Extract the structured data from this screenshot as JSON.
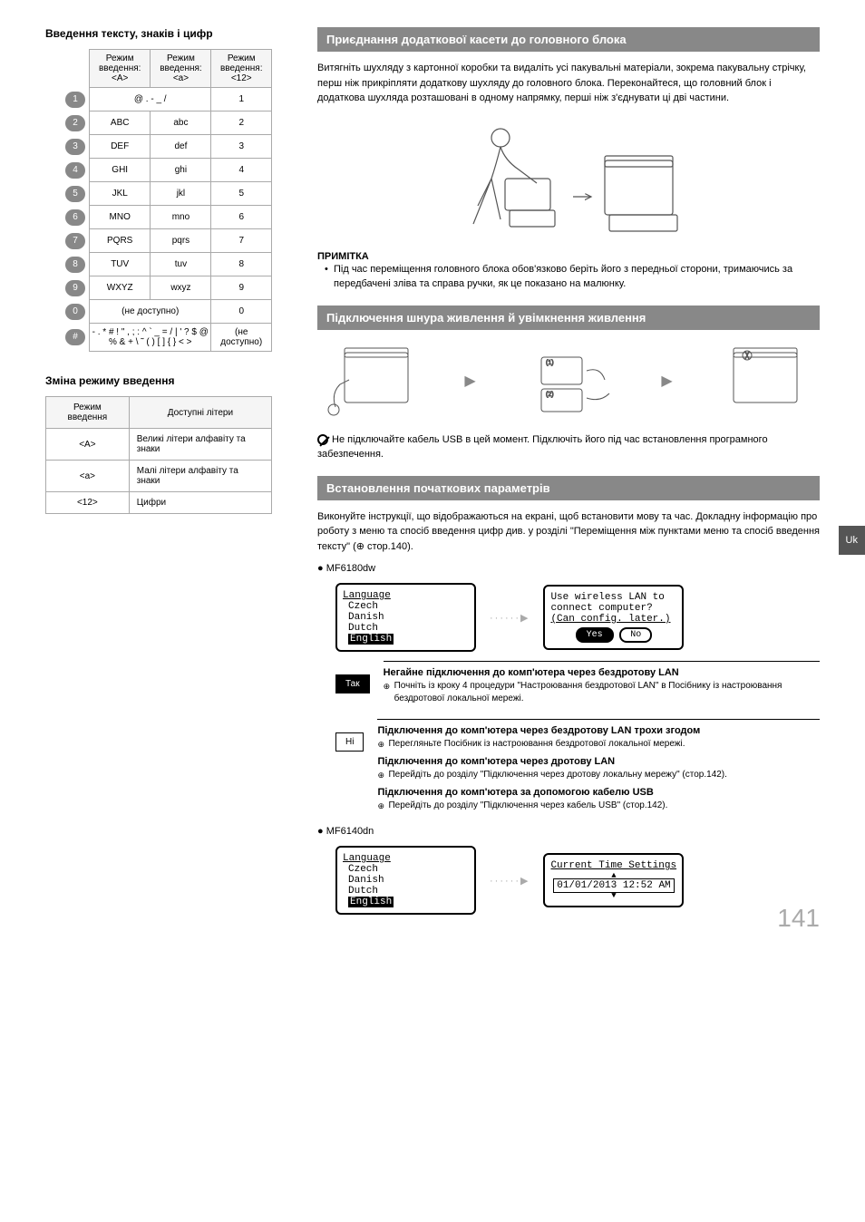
{
  "left": {
    "title_chars": "Введення тексту, знаків і цифр",
    "char_table": {
      "headers": [
        "Режим введення: <A>",
        "Режим введення: <a>",
        "Режим введення: <12>"
      ],
      "rows": [
        {
          "key": "1",
          "a": "@ . - _ /",
          "b": "",
          "n": "1",
          "merge": true
        },
        {
          "key": "2",
          "a": "ABC",
          "b": "abc",
          "n": "2"
        },
        {
          "key": "3",
          "a": "DEF",
          "b": "def",
          "n": "3"
        },
        {
          "key": "4",
          "a": "GHI",
          "b": "ghi",
          "n": "4"
        },
        {
          "key": "5",
          "a": "JKL",
          "b": "jkl",
          "n": "5"
        },
        {
          "key": "6",
          "a": "MNO",
          "b": "mno",
          "n": "6"
        },
        {
          "key": "7",
          "a": "PQRS",
          "b": "pqrs",
          "n": "7"
        },
        {
          "key": "8",
          "a": "TUV",
          "b": "tuv",
          "n": "8"
        },
        {
          "key": "9",
          "a": "WXYZ",
          "b": "wxyz",
          "n": "9"
        },
        {
          "key": "0",
          "a": "(не доступно)",
          "b": "",
          "n": "0",
          "merge": true
        },
        {
          "key": "#",
          "a": "- . * # ! \" , ; : ^ ` _ = / | ' ? $ @ % & + \\ ˜ ( ) [ ] { } < >",
          "b": "",
          "n": "(не доступно)",
          "merge": true
        }
      ]
    },
    "mode_title": "Зміна режиму введення",
    "mode_table": {
      "headers": [
        "Режим введення",
        "Доступні літери"
      ],
      "rows": [
        {
          "m": "<A>",
          "d": "Великі літери алфавіту та знаки"
        },
        {
          "m": "<a>",
          "d": "Малі літери алфавіту та знаки"
        },
        {
          "m": "<12>",
          "d": "Цифри"
        }
      ]
    }
  },
  "right": {
    "s1": {
      "title": "Приєднання додаткової касети до головного блока",
      "text": "Витягніть шухляду з картонної коробки та видаліть усі пакувальні матеріали, зокрема пакувальну стрічку, перш ніж прикріпляти додаткову шухляду до головного блока. Переконайтеся, що головний блок і додаткова шухляда розташовані в одному напрямку, перші ніж з'єднувати ці дві частини.",
      "note_title": "ПРИМІТКА",
      "note_text": "Під час переміщення головного блока обов'язково беріть його з передньої сторони, тримаючись за передбачені зліва та справа ручки, як це показано на малюнку."
    },
    "s2": {
      "title": "Підключення шнура живлення й увімкнення живлення",
      "warn": "Не підключайте кабель USB в цей момент. Підключіть його під час встановлення програмного забезпечення."
    },
    "s3": {
      "title": "Встановлення початкових параметрів",
      "text": "Виконуйте інструкції, що відображаються на екрані, щоб встановити мову та час. Докладну інформацію про роботу з меню та спосіб введення цифр див. у розділі \"Переміщення між пунктами меню та спосіб введення тексту\" (⊕ стор.140).",
      "model1": "MF6180dw",
      "lcd1": {
        "title": "Language",
        "items": [
          "Czech",
          "Danish",
          "Dutch"
        ],
        "selected": "English"
      },
      "lcd2": {
        "l1": "Use wireless LAN to",
        "l2": "connect computer?",
        "l3": "(Can config. later.)",
        "yes": "Yes",
        "no": "No"
      },
      "opt_yes": "Так",
      "opt_no": "Ні",
      "o1_h": "Негайне підключення до комп'ютера через бездротову LAN",
      "o1_t": "Почніть із кроку 4 процедури \"Настроювання бездротової LAN\" в Посібнику із настроювання бездротової локальної мережі.",
      "o2_h": "Підключення до комп'ютера через бездротову LAN трохи згодом",
      "o2_t": "Перегляньте Посібник із настроювання бездротової локальної мережі.",
      "o3_h": "Підключення до комп'ютера через дротову LAN",
      "o3_t": "Перейдіть до розділу \"Підключення через дротову локальну мережу\" (стор.142).",
      "o4_h": "Підключення до комп'ютера за допомогою кабелю USB",
      "o4_t": "Перейдіть до розділу \"Підключення через кабель USB\" (стор.142).",
      "model2": "MF6140dn",
      "lcd3": {
        "title": "Language",
        "items": [
          "Czech",
          "Danish",
          "Dutch"
        ],
        "selected": "English"
      },
      "lcd4": {
        "l1": "Current Time Settings",
        "l2": "01/01/2013 12:52 AM"
      }
    }
  },
  "page_num": "141",
  "side_tab": "Uk"
}
